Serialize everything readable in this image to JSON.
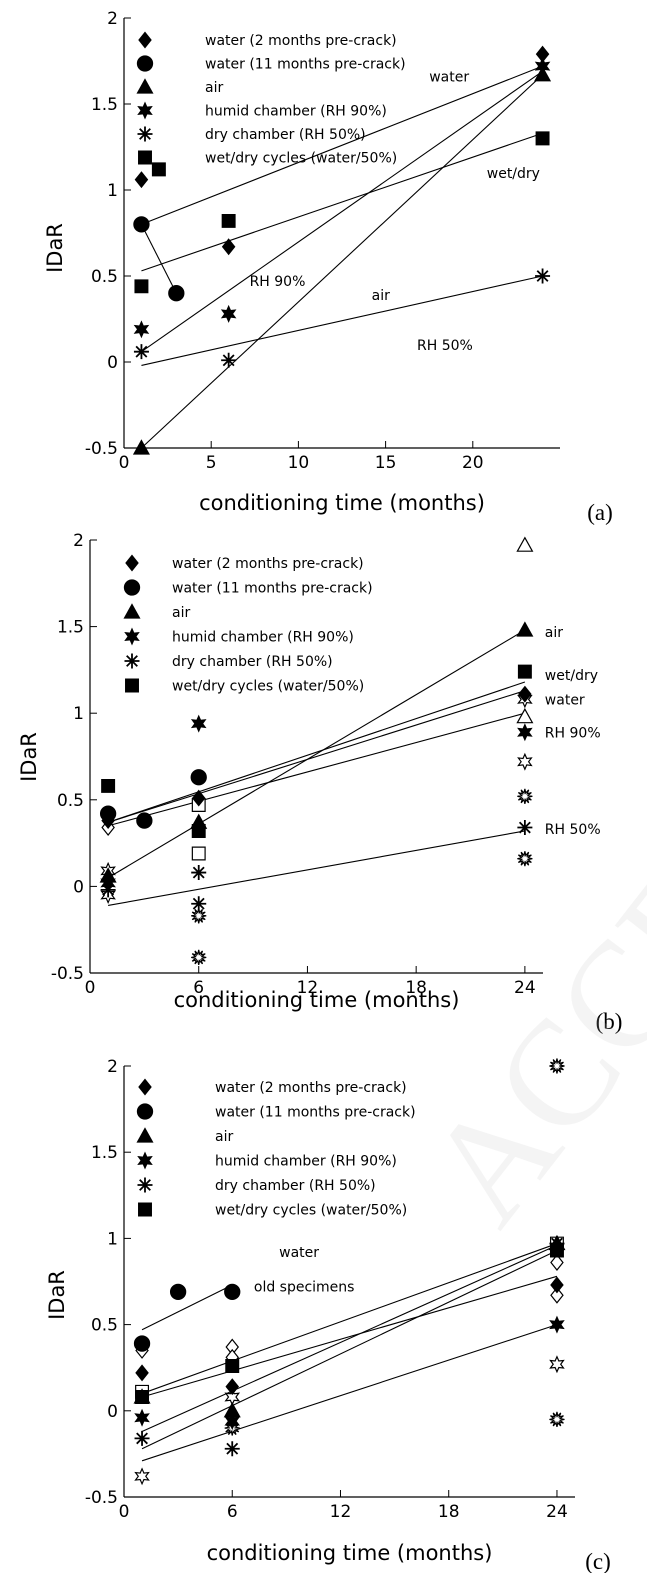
{
  "chart_data": [
    {
      "type": "scatter",
      "panel_label": "(a)",
      "xlabel": "conditioning time (months)",
      "ylabel": "IDaR",
      "xlim": [
        0,
        25
      ],
      "ylim": [
        -0.5,
        2
      ],
      "xticks": [
        0,
        5,
        10,
        15,
        20
      ],
      "yticks": [
        -0.5,
        0,
        0.5,
        1,
        1.5,
        2
      ],
      "legend": [
        "water (2 months pre-crack)",
        "water (11 months pre-crack)",
        "air",
        "humid chamber (RH 90%)",
        "dry chamber (RH 50%)",
        "wet/dry cycles (water/50%)"
      ],
      "legend_placement": "top-left",
      "grid": false,
      "series": [
        {
          "name": "water (2 months pre-crack)",
          "marker": "diamond",
          "points": [
            [
              1,
              1.06
            ],
            [
              6,
              0.67
            ],
            [
              24,
              1.79
            ]
          ]
        },
        {
          "name": "water (11 months pre-crack)",
          "marker": "circle",
          "points": [
            [
              1,
              0.8
            ],
            [
              3,
              0.4
            ]
          ]
        },
        {
          "name": "air",
          "marker": "triangle",
          "points": [
            [
              1,
              -0.5
            ],
            [
              24,
              1.67
            ]
          ]
        },
        {
          "name": "humid chamber (RH 90%)",
          "marker": "star6",
          "points": [
            [
              1,
              0.19
            ],
            [
              6,
              0.28
            ],
            [
              24,
              1.72
            ]
          ]
        },
        {
          "name": "dry chamber (RH 50%)",
          "marker": "asterisk",
          "points": [
            [
              1,
              0.06
            ],
            [
              6,
              0.01
            ],
            [
              24,
              0.5
            ]
          ]
        },
        {
          "name": "wet/dry cycles (water/50%)",
          "marker": "square",
          "points": [
            [
              1,
              0.44
            ],
            [
              2,
              1.12
            ],
            [
              6,
              0.82
            ],
            [
              24,
              1.3
            ]
          ]
        }
      ],
      "fit_lines": [
        {
          "label": "water",
          "from": [
            1,
            0.8
          ],
          "to": [
            24,
            1.72
          ]
        },
        {
          "label": "",
          "from": [
            1,
            0.8
          ],
          "to": [
            3,
            0.4
          ]
        },
        {
          "label": "air",
          "from": [
            1,
            -0.5
          ],
          "to": [
            24,
            1.67
          ]
        },
        {
          "label": "RH 90%",
          "from": [
            1,
            0.06
          ],
          "to": [
            24,
            1.69
          ]
        },
        {
          "label": "RH 50%",
          "from": [
            1,
            -0.02
          ],
          "to": [
            24,
            0.5
          ]
        },
        {
          "label": "wet/dry",
          "from": [
            1,
            0.53
          ],
          "to": [
            24,
            1.33
          ]
        }
      ],
      "annotations": [
        {
          "text": "water",
          "x": 17.5,
          "y": 1.66
        },
        {
          "text": "wet/dry",
          "x": 20.8,
          "y": 1.1
        },
        {
          "text": "RH 90%",
          "x": 7.2,
          "y": 0.47
        },
        {
          "text": "air",
          "x": 14.2,
          "y": 0.39
        },
        {
          "text": "RH 50%",
          "x": 16.8,
          "y": 0.1
        }
      ]
    },
    {
      "type": "scatter",
      "panel_label": "(b)",
      "xlabel": "conditioning time (months)",
      "ylabel": "IDaR",
      "xlim": [
        0,
        25
      ],
      "ylim": [
        -0.5,
        2
      ],
      "xticks": [
        0,
        6,
        12,
        18,
        24
      ],
      "yticks": [
        -0.5,
        0,
        0.5,
        1,
        1.5,
        2
      ],
      "legend": [
        "water (2 months pre-crack)",
        "water (11 months pre-crack)",
        "air",
        "humid chamber (RH 90%)",
        "dry chamber (RH 50%)",
        "wet/dry cycles (water/50%)"
      ],
      "legend_placement": "top-left",
      "grid": false,
      "series": [
        {
          "name": "water (2 months pre-crack)",
          "marker": "diamond",
          "points": [
            [
              1,
              0.38
            ],
            [
              6,
              0.51
            ],
            [
              24,
              1.11
            ]
          ]
        },
        {
          "name": "water (11 months pre-crack)",
          "marker": "circle",
          "points": [
            [
              1,
              0.42
            ],
            [
              3,
              0.38
            ],
            [
              6,
              0.63
            ]
          ]
        },
        {
          "name": "air",
          "marker": "triangle",
          "points": [
            [
              1,
              0.06
            ],
            [
              6,
              0.37
            ],
            [
              24,
              1.48
            ]
          ]
        },
        {
          "name": "humid chamber (RH 90%)",
          "marker": "star6",
          "points": [
            [
              1,
              0.02
            ],
            [
              6,
              0.94
            ],
            [
              24,
              0.89
            ]
          ]
        },
        {
          "name": "dry chamber (RH 50%)",
          "marker": "asterisk",
          "points": [
            [
              1,
              -0.02
            ],
            [
              6,
              0.08
            ],
            [
              6,
              -0.1
            ],
            [
              24,
              0.34
            ]
          ]
        },
        {
          "name": "wet/dry cycles (water/50%)",
          "marker": "square",
          "points": [
            [
              1,
              0.58
            ],
            [
              6,
              0.32
            ],
            [
              24,
              1.24
            ]
          ]
        }
      ],
      "open_points": [
        {
          "marker": "diamond",
          "x": 1,
          "y": 0.34
        },
        {
          "marker": "star6",
          "x": 1,
          "y": 0.09
        },
        {
          "marker": "star6",
          "x": 1,
          "y": -0.05
        },
        {
          "marker": "square",
          "x": 6,
          "y": 0.47
        },
        {
          "marker": "square",
          "x": 6,
          "y": 0.19
        },
        {
          "marker": "triangle",
          "x": 24,
          "y": 1.97
        },
        {
          "marker": "triangle",
          "x": 24,
          "y": 0.98
        },
        {
          "marker": "star6",
          "x": 24,
          "y": 1.08
        },
        {
          "marker": "star6",
          "x": 24,
          "y": 0.72
        },
        {
          "marker": "starburst",
          "x": 24,
          "y": 0.52
        },
        {
          "marker": "starburst",
          "x": 24,
          "y": 0.16
        },
        {
          "marker": "starburst",
          "x": 6,
          "y": -0.17
        },
        {
          "marker": "starburst",
          "x": 6,
          "y": -0.41
        }
      ],
      "fit_lines": [
        {
          "label": "air",
          "from": [
            1,
            0.05
          ],
          "to": [
            24,
            1.48
          ]
        },
        {
          "label": "wet/dry",
          "from": [
            1,
            0.37
          ],
          "to": [
            24,
            1.18
          ]
        },
        {
          "label": "water",
          "from": [
            1,
            0.37
          ],
          "to": [
            24,
            1.13
          ]
        },
        {
          "label": "RH 90%",
          "from": [
            1,
            0.35
          ],
          "to": [
            24,
            1.0
          ]
        },
        {
          "label": "RH 50%",
          "from": [
            1,
            -0.11
          ],
          "to": [
            24,
            0.32
          ]
        }
      ],
      "annotations": [
        {
          "text": "air",
          "x": 25.1,
          "y": 1.47
        },
        {
          "text": "wet/dry",
          "x": 25.1,
          "y": 1.22
        },
        {
          "text": "water",
          "x": 25.1,
          "y": 1.08
        },
        {
          "text": "RH 90%",
          "x": 25.1,
          "y": 0.89
        },
        {
          "text": "RH 50%",
          "x": 25.1,
          "y": 0.33
        }
      ]
    },
    {
      "type": "scatter",
      "panel_label": "(c)",
      "xlabel": "conditioning time (months)",
      "ylabel": "IDaR",
      "xlim": [
        0,
        25
      ],
      "ylim": [
        -0.5,
        2
      ],
      "xticks": [
        0,
        6,
        12,
        18,
        24
      ],
      "yticks": [
        -0.5,
        0,
        0.5,
        1,
        1.5,
        2
      ],
      "legend": [
        "water (2 months pre-crack)",
        "water (11 months pre-crack)",
        "air",
        "humid chamber (RH 90%)",
        "dry chamber (RH 50%)",
        "wet/dry cycles (water/50%)"
      ],
      "legend_placement": "top-left",
      "grid": false,
      "series": [
        {
          "name": "water (2 months pre-crack)",
          "marker": "diamond",
          "points": [
            [
              1,
              0.22
            ],
            [
              6,
              0.14
            ],
            [
              24,
              0.73
            ]
          ]
        },
        {
          "name": "water (11 months pre-crack)",
          "marker": "circle",
          "points": [
            [
              1,
              0.39
            ],
            [
              3,
              0.69
            ],
            [
              6,
              0.69
            ]
          ]
        },
        {
          "name": "air",
          "marker": "triangle",
          "points": [
            [
              1,
              0.08
            ],
            [
              6,
              0.0
            ],
            [
              24,
              0.97
            ]
          ]
        },
        {
          "name": "humid chamber (RH 90%)",
          "marker": "star6",
          "points": [
            [
              1,
              -0.04
            ],
            [
              6,
              -0.06
            ],
            [
              24,
              0.5
            ]
          ]
        },
        {
          "name": "dry chamber (RH 50%)",
          "marker": "asterisk",
          "points": [
            [
              1,
              -0.16
            ],
            [
              6,
              -0.22
            ],
            [
              24,
              0.97
            ]
          ]
        },
        {
          "name": "wet/dry cycles (water/50%)",
          "marker": "square",
          "points": [
            [
              1,
              0.08
            ],
            [
              6,
              0.26
            ],
            [
              24,
              0.93
            ]
          ]
        }
      ],
      "open_points": [
        {
          "marker": "diamond",
          "x": 1,
          "y": 0.35
        },
        {
          "marker": "square",
          "x": 1,
          "y": 0.11
        },
        {
          "marker": "star6",
          "x": 1,
          "y": -0.38
        },
        {
          "marker": "diamond",
          "x": 6,
          "y": 0.37
        },
        {
          "marker": "diamond",
          "x": 6,
          "y": 0.31
        },
        {
          "marker": "star6",
          "x": 6,
          "y": 0.08
        },
        {
          "marker": "starburst",
          "x": 6,
          "y": -0.1
        },
        {
          "marker": "diamond",
          "x": 24,
          "y": 0.67
        },
        {
          "marker": "diamond",
          "x": 24,
          "y": 0.86
        },
        {
          "marker": "square",
          "x": 24,
          "y": 0.97
        },
        {
          "marker": "star6",
          "x": 24,
          "y": 0.27
        },
        {
          "marker": "starburst",
          "x": 24,
          "y": 2.0
        },
        {
          "marker": "starburst",
          "x": 24,
          "y": -0.05
        }
      ],
      "fit_lines": [
        {
          "label": "water old specimens",
          "from": [
            1,
            0.47
          ],
          "to": [
            6,
            0.73
          ]
        },
        {
          "label": "",
          "from": [
            1,
            0.1
          ],
          "to": [
            24,
            0.97
          ]
        },
        {
          "label": "",
          "from": [
            1,
            -0.12
          ],
          "to": [
            24,
            0.96
          ]
        },
        {
          "label": "",
          "from": [
            1,
            -0.22
          ],
          "to": [
            24,
            0.93
          ]
        },
        {
          "label": "",
          "from": [
            1,
            0.08
          ],
          "to": [
            24,
            0.78
          ]
        },
        {
          "label": "",
          "from": [
            1,
            -0.29
          ],
          "to": [
            24,
            0.5
          ]
        }
      ],
      "annotations": [
        {
          "text": "water",
          "x": 8.6,
          "y": 0.92
        },
        {
          "text": "old specimens",
          "x": 7.2,
          "y": 0.72
        }
      ]
    }
  ],
  "watermark_text": "ACCEPTED MANUSCRIPT"
}
